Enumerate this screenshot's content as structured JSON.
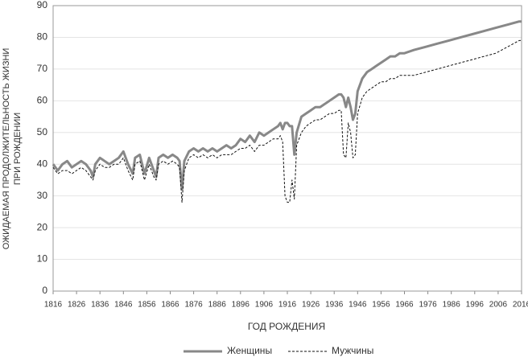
{
  "chart_data": {
    "type": "line",
    "xlabel": "ГОД РОЖДЕНИЯ",
    "ylabel": [
      "ОЖИДАЕМАЯ ПРОДОЛЖИТЕЛЬНОСТЬ ЖИЗНИ",
      "ПРИ РОЖДЕНИИ"
    ],
    "x": [
      1816,
      1818,
      1820,
      1822,
      1824,
      1826,
      1828,
      1830,
      1832,
      1833,
      1834,
      1836,
      1838,
      1840,
      1842,
      1844,
      1846,
      1848,
      1850,
      1851,
      1853,
      1855,
      1857,
      1859,
      1860,
      1861,
      1863,
      1865,
      1867,
      1869,
      1870,
      1871,
      1872,
      1874,
      1876,
      1878,
      1880,
      1882,
      1884,
      1886,
      1888,
      1890,
      1892,
      1894,
      1896,
      1898,
      1900,
      1902,
      1904,
      1906,
      1908,
      1910,
      1912,
      1913,
      1914,
      1915,
      1916,
      1917,
      1918,
      1919,
      1920,
      1922,
      1924,
      1926,
      1928,
      1930,
      1932,
      1934,
      1936,
      1938,
      1939,
      1940,
      1941,
      1942,
      1943,
      1944,
      1945,
      1946,
      1948,
      1950,
      1952,
      1954,
      1956,
      1958,
      1960,
      1962,
      1964,
      1966,
      1970,
      1975,
      1980,
      1985,
      1990,
      1995,
      2000,
      2005,
      2010,
      2015,
      2016
    ],
    "series": [
      {
        "name": "Женщины",
        "color": "#888888",
        "linestyle": "solid",
        "linewidth": 3,
        "values": [
          40,
          38,
          40,
          41,
          39,
          40,
          41,
          40,
          38,
          36,
          40,
          42,
          41,
          40,
          41,
          42,
          44,
          40,
          37,
          42,
          43,
          37,
          42,
          38,
          36,
          42,
          43,
          42,
          43,
          42,
          41,
          32,
          41,
          44,
          45,
          44,
          45,
          44,
          45,
          44,
          45,
          46,
          45,
          46,
          48,
          47,
          49,
          47,
          50,
          49,
          50,
          51,
          52,
          53,
          51,
          53,
          53,
          52,
          52,
          43,
          50,
          55,
          56,
          57,
          58,
          58,
          59,
          60,
          61,
          62,
          62,
          61,
          58,
          61,
          58,
          54,
          56,
          63,
          67,
          69,
          70,
          71,
          72,
          73,
          74,
          74,
          75,
          75,
          76,
          77,
          78,
          79,
          80,
          81,
          82,
          83,
          84,
          85,
          85
        ]
      },
      {
        "name": "Мужчины",
        "color": "#111111",
        "linestyle": "dashed",
        "linewidth": 1,
        "values": [
          39,
          37,
          38,
          38,
          37,
          38,
          39,
          38,
          36,
          35,
          38,
          40,
          39,
          39,
          40,
          40,
          42,
          38,
          35,
          40,
          41,
          35,
          40,
          36,
          35,
          40,
          41,
          40,
          41,
          40,
          39,
          28,
          38,
          42,
          43,
          42,
          43,
          42,
          43,
          42,
          43,
          43,
          43,
          44,
          45,
          45,
          46,
          44,
          46,
          46,
          47,
          48,
          48,
          49,
          47,
          30,
          28,
          28,
          35,
          29,
          46,
          50,
          52,
          53,
          54,
          54,
          55,
          56,
          56,
          57,
          57,
          43,
          42,
          53,
          50,
          42,
          43,
          56,
          61,
          63,
          64,
          65,
          66,
          66,
          67,
          67,
          68,
          68,
          68,
          69,
          70,
          71,
          72,
          73,
          74,
          75,
          77,
          79,
          79
        ]
      }
    ],
    "xlim": [
      1816,
      2016
    ],
    "xticks": [
      1816,
      1826,
      1836,
      1846,
      1856,
      1866,
      1876,
      1886,
      1896,
      1906,
      1916,
      1926,
      1936,
      1946,
      1956,
      1966,
      1976,
      1986,
      1996,
      2006,
      2016
    ],
    "ylim": [
      0,
      90
    ],
    "yticks": [
      0,
      10,
      20,
      30,
      40,
      50,
      60,
      70,
      80,
      90
    ],
    "grid": true,
    "legend": "bottom"
  }
}
